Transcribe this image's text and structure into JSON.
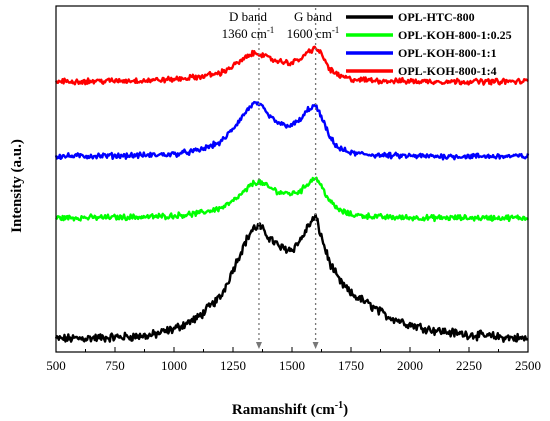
{
  "chart_data": {
    "type": "line",
    "xlabel": "Ramanshift (cm",
    "xlabel_sup": "-1",
    "xlabel_tail": ")",
    "ylabel": "Intensity (a.u.)",
    "xlim": [
      500,
      2500
    ],
    "x_ticks": [
      500,
      750,
      1000,
      1250,
      1500,
      1750,
      2000,
      2250,
      2500
    ],
    "y_ticks_shown": false,
    "grid": false,
    "legend_position": "top-right",
    "annotations": [
      {
        "id": "d-band",
        "line1": "D band",
        "line2": "1360 cm",
        "sup": "-1",
        "x": 1360
      },
      {
        "id": "g-band",
        "line1": "G band",
        "line2": "1600 cm",
        "sup": "-1",
        "x": 1600
      }
    ],
    "x_grid_points": [
      500,
      700,
      900,
      1000,
      1100,
      1200,
      1250,
      1300,
      1330,
      1360,
      1400,
      1450,
      1500,
      1540,
      1570,
      1600,
      1630,
      1660,
      1700,
      1750,
      1800,
      1900,
      2000,
      2100,
      2200,
      2300,
      2400,
      2500
    ],
    "series": [
      {
        "name": "OPL-HTC-800",
        "color": "#000000",
        "offset": 0,
        "values": [
          0.5,
          1.0,
          2.0,
          5.0,
          10.0,
          20.0,
          32.0,
          44.0,
          50.0,
          52.0,
          47.0,
          42.0,
          41.0,
          46.0,
          52.0,
          56.0,
          45.0,
          35.0,
          27.0,
          21.0,
          18.0,
          11.0,
          7.0,
          4.5,
          3.0,
          2.0,
          1.2,
          0.5
        ]
      },
      {
        "name": "OPL-KOH-800-1:0.25",
        "color": "#00ff00",
        "offset": 55,
        "values": [
          0.5,
          0.7,
          1.0,
          1.5,
          2.5,
          5.0,
          8.0,
          12.5,
          16.0,
          17.0,
          14.5,
          12.0,
          11.5,
          13.0,
          16.5,
          19.0,
          14.0,
          8.0,
          4.0,
          2.0,
          1.5,
          0.8,
          0.6,
          0.5,
          0.5,
          0.5,
          0.5,
          0.5
        ]
      },
      {
        "name": "OPL-KOH-800-1:1",
        "color": "#0000ff",
        "offset": 83,
        "values": [
          0.5,
          0.7,
          1.0,
          1.5,
          3.0,
          7.0,
          13.0,
          20.0,
          24.0,
          24.5,
          19.0,
          15.0,
          14.5,
          17.5,
          22.0,
          23.5,
          17.0,
          9.0,
          4.0,
          2.0,
          1.5,
          0.8,
          0.6,
          0.5,
          0.5,
          0.5,
          0.5,
          0.5
        ]
      },
      {
        "name": "OPL-KOH-800-1:4",
        "color": "#ff0000",
        "offset": 117,
        "values": [
          0.5,
          0.7,
          1.0,
          1.5,
          2.5,
          4.5,
          7.5,
          11.0,
          13.0,
          13.5,
          11.0,
          9.5,
          9.0,
          11.0,
          14.0,
          16.0,
          12.0,
          6.0,
          3.0,
          1.5,
          1.2,
          0.8,
          0.6,
          0.5,
          0.5,
          0.5,
          0.5,
          0.5
        ]
      }
    ]
  }
}
